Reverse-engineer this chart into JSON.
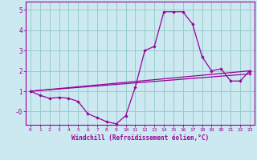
{
  "xlabel": "Windchill (Refroidissement éolien,°C)",
  "background_color": "#cce8f0",
  "grid_color": "#99cccc",
  "line_color": "#990099",
  "xlim": [
    -0.5,
    23.5
  ],
  "ylim": [
    -0.65,
    5.4
  ],
  "xticks": [
    0,
    1,
    2,
    3,
    4,
    5,
    6,
    7,
    8,
    9,
    10,
    11,
    12,
    13,
    14,
    15,
    16,
    17,
    18,
    19,
    20,
    21,
    22,
    23
  ],
  "yticks": [
    0,
    1,
    2,
    3,
    4,
    5
  ],
  "ytick_labels": [
    "-0",
    "1",
    "2",
    "3",
    "4",
    "5"
  ],
  "series": [
    {
      "x": [
        0,
        1,
        2,
        3,
        4,
        5,
        6,
        7,
        8,
        9,
        10,
        11,
        12,
        13,
        14,
        15,
        16,
        17,
        18,
        19,
        20,
        21,
        22,
        23
      ],
      "y": [
        1.0,
        0.8,
        0.65,
        0.7,
        0.65,
        0.5,
        -0.1,
        -0.3,
        -0.5,
        -0.6,
        -0.2,
        1.2,
        3.0,
        3.2,
        4.9,
        4.9,
        4.9,
        4.3,
        2.7,
        2.0,
        2.1,
        1.5,
        1.5,
        2.0
      ]
    },
    {
      "x": [
        0,
        23
      ],
      "y": [
        1.0,
        2.0
      ]
    },
    {
      "x": [
        0,
        23
      ],
      "y": [
        1.0,
        1.85
      ]
    }
  ]
}
